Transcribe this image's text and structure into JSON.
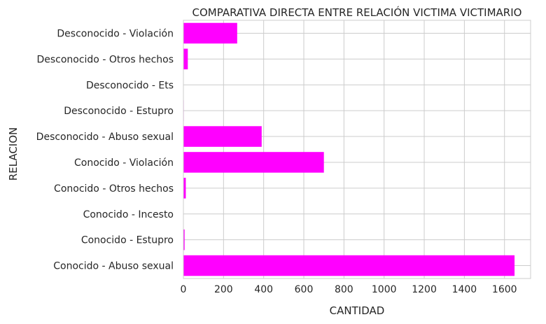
{
  "chart_data": {
    "type": "bar",
    "orientation": "horizontal",
    "title": "COMPARATIVA DIRECTA ENTRE RELACIÓN VICTIMA VICTIMARIO",
    "xlabel": "CANTIDAD",
    "ylabel": "RELACION",
    "categories": [
      "Conocido - Abuso sexual",
      "Conocido - Estupro",
      "Conocido - Incesto",
      "Conocido - Otros hechos",
      "Conocido - Violación",
      "Desconocido - Abuso sexual",
      "Desconocido - Estupro",
      "Desconocido - Ets",
      "Desconocido - Otros hechos",
      "Desconocido - Violación"
    ],
    "values": [
      1650,
      6,
      1,
      12,
      700,
      390,
      2,
      1,
      22,
      268
    ],
    "xlim": [
      0,
      1730
    ],
    "xticks": [
      0,
      200,
      400,
      600,
      800,
      1000,
      1200,
      1400,
      1600
    ],
    "grid": true,
    "bar_color": "#ff00ff",
    "grid_color": "#cccccc"
  }
}
